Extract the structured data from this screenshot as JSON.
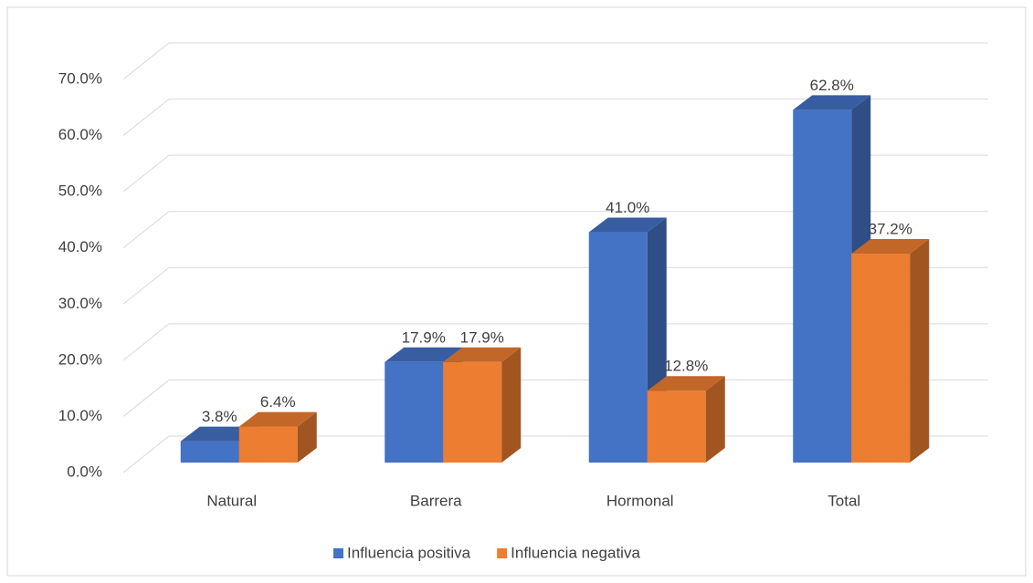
{
  "chart_data": {
    "type": "bar3d",
    "categories": [
      "Natural",
      "Barrera",
      "Hormonal",
      "Total"
    ],
    "series": [
      {
        "name": "Influencia positiva",
        "color": "#4472c4",
        "values": [
          3.8,
          17.9,
          41.0,
          62.8
        ],
        "value_labels": [
          "3.8%",
          "17.9%",
          "41.0%",
          "62.8%"
        ]
      },
      {
        "name": "Influencia negativa",
        "color": "#ed7d31",
        "values": [
          6.4,
          17.9,
          12.8,
          37.2
        ],
        "value_labels": [
          "6.4%",
          "17.9%",
          "12.8%",
          "37.2%"
        ]
      }
    ],
    "ylim": [
      0,
      70
    ],
    "yticks": [
      {
        "value": 0,
        "label": "0.0%"
      },
      {
        "value": 10,
        "label": "10.0%"
      },
      {
        "value": 20,
        "label": "20.0%"
      },
      {
        "value": 30,
        "label": "30.0%"
      },
      {
        "value": 40,
        "label": "40.0%"
      },
      {
        "value": 50,
        "label": "50.0%"
      },
      {
        "value": 60,
        "label": "60.0%"
      },
      {
        "value": 70,
        "label": "70.0%"
      }
    ],
    "grid": true,
    "legend": "bottom"
  }
}
